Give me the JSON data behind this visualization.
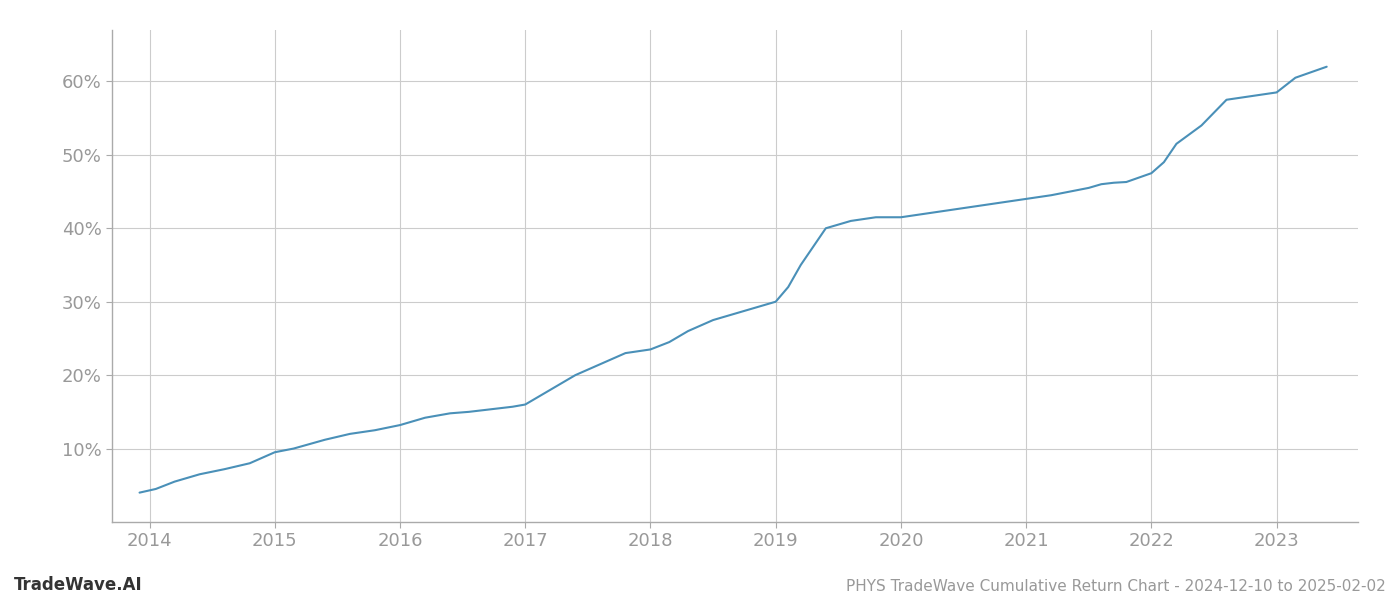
{
  "title": "PHYS TradeWave Cumulative Return Chart - 2024-12-10 to 2025-02-02",
  "watermark": "TradeWave.AI",
  "line_color": "#4a90b8",
  "background_color": "#ffffff",
  "grid_color": "#cccccc",
  "x_years": [
    2014,
    2015,
    2016,
    2017,
    2018,
    2019,
    2020,
    2021,
    2022,
    2023
  ],
  "x_data": [
    2013.92,
    2014.05,
    2014.2,
    2014.4,
    2014.6,
    2014.8,
    2015.0,
    2015.15,
    2015.4,
    2015.6,
    2015.8,
    2016.0,
    2016.2,
    2016.4,
    2016.55,
    2016.7,
    2016.9,
    2017.0,
    2017.2,
    2017.4,
    2017.6,
    2017.8,
    2018.0,
    2018.15,
    2018.3,
    2018.5,
    2018.7,
    2018.9,
    2019.0,
    2019.1,
    2019.2,
    2019.3,
    2019.4,
    2019.5,
    2019.6,
    2019.8,
    2020.0,
    2020.2,
    2020.4,
    2020.6,
    2020.8,
    2021.0,
    2021.2,
    2021.35,
    2021.5,
    2021.6,
    2021.7,
    2021.8,
    2022.0,
    2022.1,
    2022.2,
    2022.4,
    2022.6,
    2022.8,
    2023.0,
    2023.15,
    2023.4
  ],
  "y_data": [
    4.0,
    4.5,
    5.5,
    6.5,
    7.2,
    8.0,
    9.5,
    10.0,
    11.2,
    12.0,
    12.5,
    13.2,
    14.2,
    14.8,
    15.0,
    15.3,
    15.7,
    16.0,
    18.0,
    20.0,
    21.5,
    23.0,
    23.5,
    24.5,
    26.0,
    27.5,
    28.5,
    29.5,
    30.0,
    32.0,
    35.0,
    37.5,
    40.0,
    40.5,
    41.0,
    41.5,
    41.5,
    42.0,
    42.5,
    43.0,
    43.5,
    44.0,
    44.5,
    45.0,
    45.5,
    46.0,
    46.2,
    46.3,
    47.5,
    49.0,
    51.5,
    54.0,
    57.5,
    58.0,
    58.5,
    60.5,
    62.0
  ],
  "ylim": [
    0,
    67
  ],
  "yticks": [
    10,
    20,
    30,
    40,
    50,
    60
  ],
  "xlim": [
    2013.7,
    2023.65
  ],
  "line_width": 1.5,
  "title_fontsize": 11,
  "watermark_fontsize": 12,
  "tick_fontsize": 13,
  "tick_color": "#999999",
  "spine_color": "#aaaaaa",
  "left_spine_color": "#333333"
}
